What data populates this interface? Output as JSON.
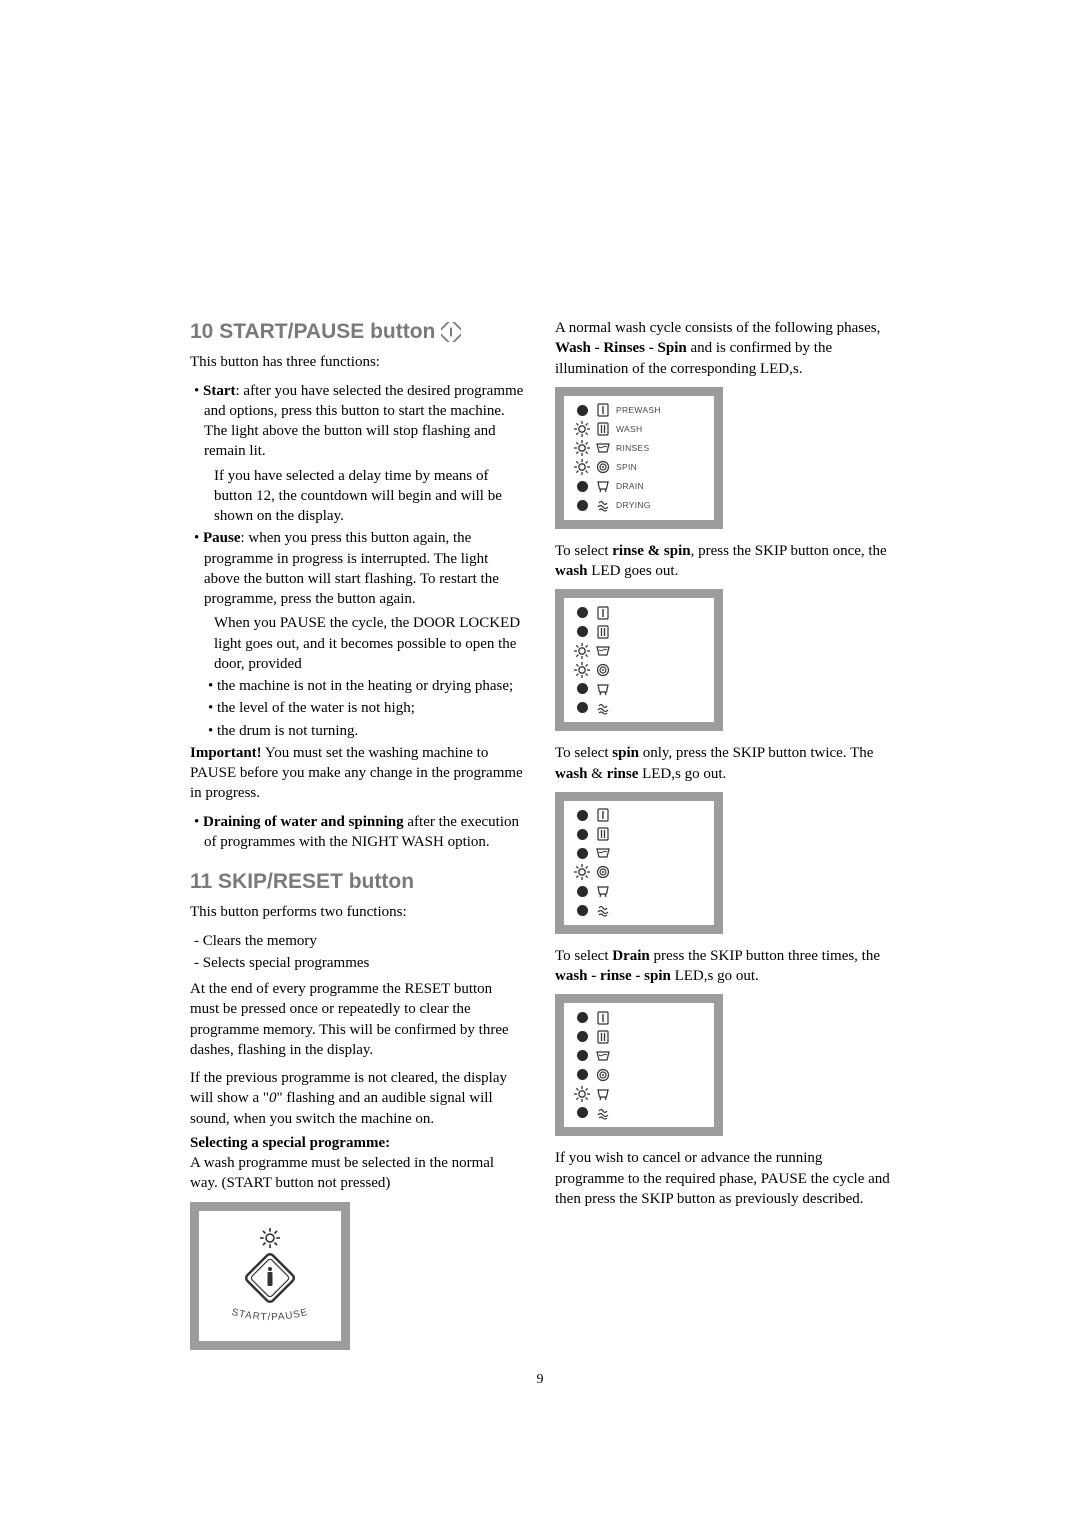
{
  "page_number": "9",
  "left": {
    "section10": {
      "title": "10 START/PAUSE button",
      "intro": "This button has three functions:",
      "start_bullet": "Start: after you have selected the desired programme and options, press this button to start the machine. The light above the button will stop flashing and remain lit.",
      "start_note": "If you have selected a delay time by means of button 12, the countdown will begin and will be shown on the display.",
      "pause_bullet": "Pause: when you press this button again, the programme in progress is interrupted. The light above the button will start flashing. To restart the programme, press the button again.",
      "pause_note": "When you PAUSE the cycle, the DOOR LOCKED light goes out, and it becomes possible to open the door, provided",
      "sub1": "• the machine is not in the heating or drying phase;",
      "sub2": "• the level of the water is not high;",
      "sub3": "• the drum is not turning.",
      "important": "Important! You must set the washing machine to PAUSE before you make any change in the programme in progress.",
      "drain_bullet": "Draining of water and spinning after the execution of programmes with the NIGHT WASH option."
    },
    "section11": {
      "title": "11 SKIP/RESET button",
      "intro": "This button performs two functions:",
      "f1": "- Clears the memory",
      "f2": "- Selects special programmes",
      "para1": "At the end of every programme the RESET button must be pressed once or repeatedly to clear the programme memory. This will be confirmed by three dashes, flashing in the display.",
      "para2": "If the previous programme is not cleared, the display will show a \"0\" flashing and an audible signal will sound, when you switch the machine on.",
      "subhead": "Selecting a special programme:",
      "para3": "A wash programme must be selected in the normal way. (START button not pressed)",
      "figlabel": "START/PAUSE"
    }
  },
  "right": {
    "intro1": "A normal wash cycle consists of the following phases, ",
    "intro1b": "Wash - Rinses - Spin",
    "intro1c": " and is confirmed by the illumination of the corresponding LED,s.",
    "phases": {
      "prewash": "PREWASH",
      "wash": "WASH",
      "rinses": "RINSES",
      "spin": "SPIN",
      "drain": "DRAIN",
      "drying": "DRYING"
    },
    "diagram1_states": [
      "off",
      "on",
      "on",
      "on",
      "off",
      "off"
    ],
    "p2a": "To select ",
    "p2b": "rinse & spin",
    "p2c": ", press the SKIP button once, the ",
    "p2d": "wash",
    "p2e": " LED goes out.",
    "diagram2_states": [
      "off",
      "off",
      "on",
      "on",
      "off",
      "off"
    ],
    "p3a": "To select ",
    "p3b": "spin",
    "p3c": " only, press the SKIP button twice. The ",
    "p3d": "wash",
    "p3e": " & ",
    "p3f": "rinse",
    "p3g": " LED,s go out.",
    "diagram3_states": [
      "off",
      "off",
      "off",
      "on",
      "off",
      "off"
    ],
    "p4a": "To select ",
    "p4b": "Drain",
    "p4c": " press the SKIP button three times, the ",
    "p4d": "wash - rinse - spin",
    "p4e": " LED,s go out.",
    "diagram4_states": [
      "off",
      "off",
      "off",
      "off",
      "on",
      "off"
    ],
    "final": "If you wish to cancel or advance the running programme to the required phase, PAUSE the cycle and then press the SKIP button as previously described."
  },
  "icons": {
    "prewash": "I",
    "wash": "II",
    "rinses": "▭",
    "spin": "◎",
    "drain": "⎳",
    "drying": "♨"
  },
  "colors": {
    "heading": "#7a7a7a",
    "border": "#9c9c9c",
    "text": "#000000",
    "iconstroke": "#333333"
  }
}
